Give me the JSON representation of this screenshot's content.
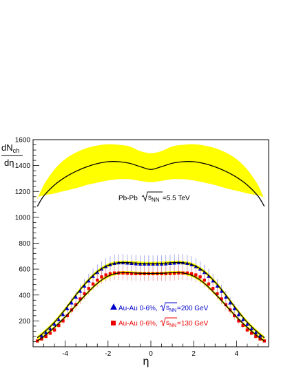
{
  "chart_data": {
    "type": "line",
    "xlabel": "η",
    "ylabel_num": "dN",
    "ylabel_num_sub": "ch",
    "ylabel_den": "dη",
    "xlim": [
      -5.5,
      5.5
    ],
    "ylim": [
      0,
      1600
    ],
    "xticks": [
      -4,
      -2,
      0,
      2,
      4
    ],
    "yticks": [
      200,
      400,
      600,
      800,
      1000,
      1200,
      1400,
      1600
    ],
    "grid": false,
    "legend_position": "bottom-center",
    "colors": {
      "band": "#ffff00",
      "curve": "#000000",
      "au200": "#0000cc",
      "au130": "#ee0000",
      "axis": "#000000"
    },
    "annotation": {
      "prefix": "Pb-Pb ",
      "sqrt_s": "s",
      "sqrt_sub": "NN",
      "suffix": "=5.5 TeV"
    },
    "legend": [
      {
        "marker": "triangle",
        "prefix": "Au-Au 0-6%, ",
        "sqrt_s": "s",
        "sqrt_sub": "NN",
        "suffix": "=200 GeV"
      },
      {
        "marker": "square",
        "prefix": "Au-Au 0-6%, ",
        "sqrt_s": "s",
        "sqrt_sub": "NN",
        "suffix": "=130 GeV"
      }
    ],
    "series": [
      {
        "kind": "band_curve",
        "x": [
          -5.3,
          -5.0,
          -4.5,
          -4.0,
          -3.5,
          -3.0,
          -2.5,
          -2.0,
          -1.5,
          -1.0,
          -0.5,
          0.0,
          0.5,
          1.0,
          1.5,
          2.0,
          2.5,
          3.0,
          3.5,
          4.0,
          4.5,
          5.0,
          5.3
        ],
        "y": [
          1085,
          1165,
          1250,
          1310,
          1355,
          1390,
          1415,
          1430,
          1430,
          1418,
          1392,
          1370,
          1392,
          1418,
          1430,
          1430,
          1415,
          1390,
          1355,
          1310,
          1250,
          1165,
          1085
        ],
        "band_upper": [
          1140,
          1250,
          1370,
          1450,
          1500,
          1535,
          1555,
          1565,
          1560,
          1548,
          1512,
          1495,
          1512,
          1548,
          1560,
          1565,
          1555,
          1535,
          1500,
          1450,
          1370,
          1250,
          1140
        ],
        "band_lower": [
          1155,
          1170,
          1185,
          1205,
          1225,
          1250,
          1268,
          1285,
          1295,
          1295,
          1282,
          1272,
          1282,
          1295,
          1295,
          1285,
          1268,
          1250,
          1225,
          1205,
          1185,
          1170,
          1155
        ]
      },
      {
        "kind": "band_curve",
        "x": [
          -5.3,
          -5.0,
          -4.5,
          -4.0,
          -3.5,
          -3.0,
          -2.5,
          -2.0,
          -1.5,
          -1.0,
          -0.5,
          0.0,
          0.5,
          1.0,
          1.5,
          2.0,
          2.5,
          3.0,
          3.5,
          4.0,
          4.5,
          5.0,
          5.3
        ],
        "y": [
          70,
          110,
          190,
          290,
          400,
          500,
          580,
          630,
          650,
          650,
          645,
          642,
          645,
          650,
          650,
          630,
          580,
          500,
          400,
          290,
          190,
          110,
          70
        ],
        "band_half_width": 14
      },
      {
        "kind": "band_curve",
        "x": [
          -5.3,
          -5.0,
          -4.5,
          -4.0,
          -3.5,
          -3.0,
          -2.5,
          -2.0,
          -1.5,
          -1.0,
          -0.5,
          0.0,
          0.5,
          1.0,
          1.5,
          2.0,
          2.5,
          3.0,
          3.5,
          4.0,
          4.5,
          5.0,
          5.3
        ],
        "y": [
          45,
          80,
          150,
          230,
          320,
          410,
          490,
          545,
          570,
          572,
          568,
          566,
          568,
          572,
          570,
          545,
          490,
          410,
          320,
          230,
          150,
          80,
          45
        ],
        "band_half_width": 12
      },
      {
        "name": "Au-Au 0-6%, √sNN=200 GeV",
        "kind": "points",
        "marker": "triangle",
        "x": [
          -5.1,
          -4.9,
          -4.7,
          -4.5,
          -4.3,
          -4.1,
          -3.9,
          -3.7,
          -3.5,
          -3.3,
          -3.1,
          -2.9,
          -2.7,
          -2.5,
          -2.3,
          -2.1,
          -1.9,
          -1.7,
          -1.5,
          -1.3,
          -1.1,
          -0.9,
          -0.7,
          -0.5,
          -0.3,
          -0.1,
          0.1,
          0.3,
          0.5,
          0.7,
          0.9,
          1.1,
          1.3,
          1.5,
          1.7,
          1.9,
          2.1,
          2.3,
          2.5,
          2.7,
          2.9,
          3.1,
          3.3,
          3.5,
          3.7,
          3.9,
          4.1,
          4.3,
          4.5,
          4.7,
          4.9,
          5.1
        ],
        "y": [
          85,
          110,
          140,
          175,
          210,
          250,
          295,
          340,
          385,
          430,
          470,
          510,
          545,
          575,
          600,
          620,
          635,
          645,
          650,
          650,
          648,
          645,
          642,
          640,
          640,
          640,
          640,
          640,
          640,
          642,
          645,
          648,
          650,
          650,
          645,
          635,
          620,
          600,
          575,
          545,
          510,
          470,
          430,
          385,
          340,
          295,
          250,
          210,
          175,
          140,
          110,
          85
        ],
        "err": [
          15,
          18,
          20,
          22,
          25,
          30,
          35,
          40,
          45,
          50,
          52,
          55,
          58,
          60,
          62,
          64,
          65,
          66,
          66,
          66,
          66,
          66,
          66,
          66,
          66,
          66,
          66,
          66,
          66,
          66,
          66,
          66,
          66,
          66,
          66,
          65,
          64,
          62,
          60,
          58,
          55,
          52,
          50,
          45,
          40,
          35,
          30,
          25,
          22,
          20,
          18,
          15
        ]
      },
      {
        "name": "Au-Au 0-6%, √sNN=130 GeV",
        "kind": "points",
        "marker": "square",
        "x": [
          -5.3,
          -5.1,
          -4.9,
          -4.7,
          -4.5,
          -4.3,
          -4.1,
          -3.9,
          -3.7,
          -3.5,
          -3.3,
          -3.1,
          -2.9,
          -2.7,
          -2.5,
          -2.3,
          -2.1,
          -1.9,
          -1.7,
          -1.5,
          -1.3,
          -1.1,
          -0.9,
          -0.7,
          -0.5,
          -0.3,
          -0.1,
          0.1,
          0.3,
          0.5,
          0.7,
          0.9,
          1.1,
          1.3,
          1.5,
          1.7,
          1.9,
          2.1,
          2.3,
          2.5,
          2.7,
          2.9,
          3.1,
          3.3,
          3.5,
          3.7,
          3.9,
          4.1,
          4.3,
          4.5,
          4.7,
          4.9,
          5.1,
          5.3
        ],
        "y": [
          45,
          60,
          80,
          105,
          130,
          165,
          200,
          240,
          285,
          325,
          370,
          410,
          450,
          485,
          515,
          540,
          555,
          565,
          570,
          570,
          570,
          568,
          566,
          565,
          565,
          565,
          565,
          565,
          565,
          565,
          565,
          566,
          568,
          570,
          570,
          570,
          565,
          555,
          540,
          515,
          485,
          450,
          410,
          370,
          325,
          285,
          240,
          200,
          165,
          130,
          105,
          80,
          60,
          45
        ],
        "err": [
          10,
          12,
          14,
          16,
          18,
          22,
          26,
          30,
          34,
          38,
          42,
          45,
          48,
          50,
          52,
          54,
          55,
          56,
          56,
          56,
          56,
          56,
          56,
          56,
          56,
          56,
          56,
          56,
          56,
          56,
          56,
          56,
          56,
          56,
          56,
          56,
          56,
          55,
          54,
          52,
          50,
          48,
          45,
          42,
          38,
          34,
          30,
          26,
          22,
          18,
          16,
          14,
          12,
          10
        ]
      }
    ]
  }
}
